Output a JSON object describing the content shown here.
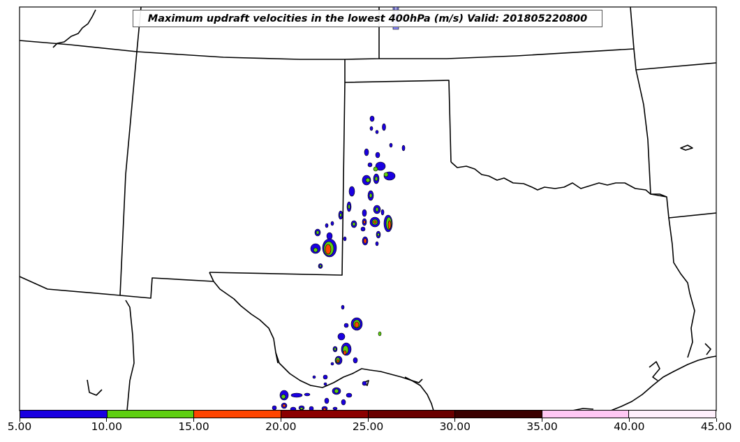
{
  "title": "Maximum updraft velocities in the lowest 400hPa (m/s) Valid: 201805220800",
  "legend": {
    "colors": [
      "#1a00e0",
      "#5ecf10",
      "#ff4500",
      "#8b0000",
      "#6a0000",
      "#3a0000",
      "#ffc8f4",
      "#fff0fc"
    ],
    "labels": [
      "5.00",
      "10.00",
      "15.00",
      "20.00",
      "25.00",
      "30.00",
      "35.00",
      "40.00",
      "45.00"
    ]
  }
}
